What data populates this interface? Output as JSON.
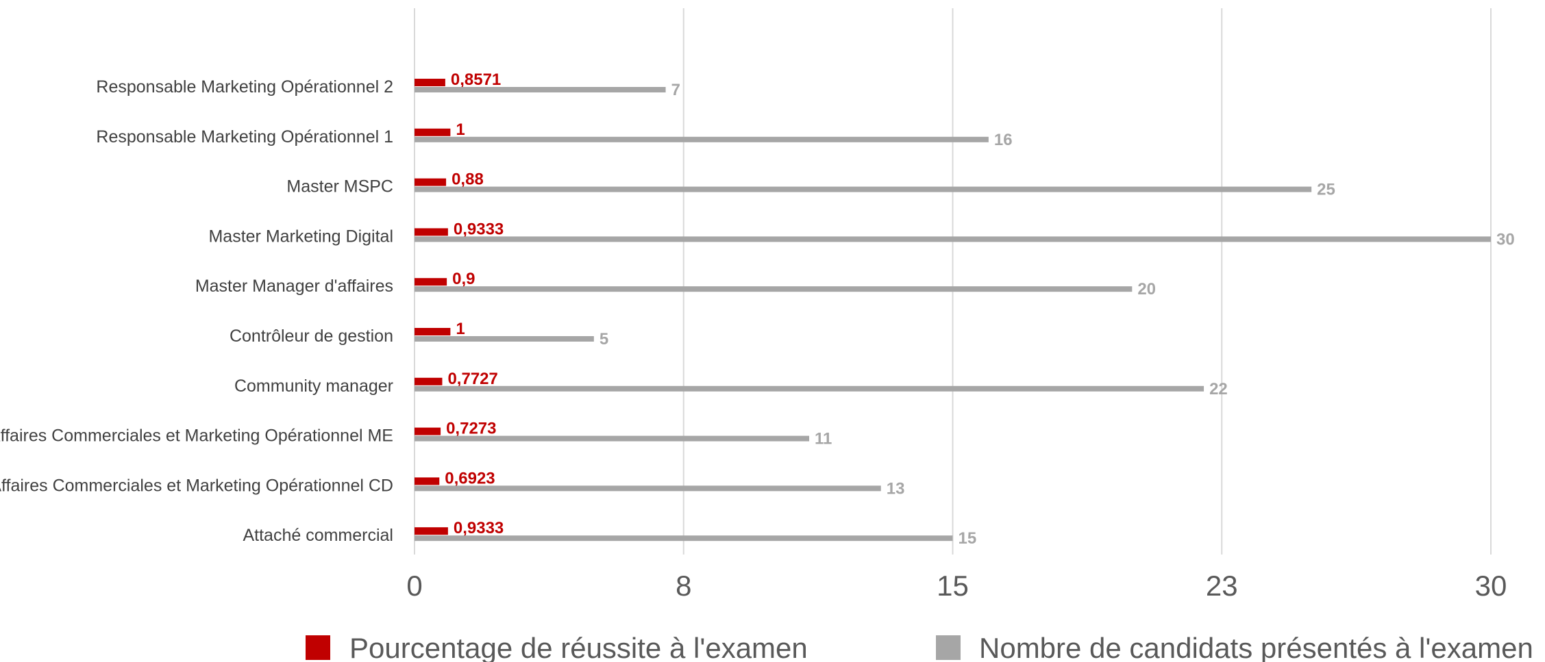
{
  "chart_data": {
    "type": "bar",
    "orientation": "horizontal",
    "categories": [
      "Responsable Marketing Opérationnel  2",
      "Responsable Marketing Opérationnel 1",
      "Master MSPC",
      "Master Marketing Digital",
      "Master Manager d'affaires",
      "Contrôleur de gestion",
      "Community manager",
      "Négociateur en Affaires Commerciales et Marketing Opérationnel ME",
      "Négociateur en Affaires Commerciales et Marketing Opérationnel CD",
      "Attaché commercial"
    ],
    "series": [
      {
        "name": "Pourcentage de réussite à l'examen",
        "color": "#C00000",
        "values": [
          0.8571,
          1,
          0.88,
          0.9333,
          0.9,
          1,
          0.7727,
          0.7273,
          0.6923,
          0.9333
        ],
        "labels": [
          "0,8571",
          "1",
          "0,88",
          "0,9333",
          "0,9",
          "1",
          "0,7727",
          "0,7273",
          "0,6923",
          "0,9333"
        ]
      },
      {
        "name": "Nombre de candidats présentés à l'examen",
        "color": "#A6A6A6",
        "values": [
          7,
          16,
          25,
          30,
          20,
          5,
          22,
          11,
          13,
          15
        ],
        "labels": [
          "7",
          "16",
          "25",
          "30",
          "20",
          "5",
          "22",
          "11",
          "13",
          "15"
        ]
      }
    ],
    "xlim": [
      0,
      30
    ],
    "xticks": [
      0,
      7.5,
      15,
      22.5,
      30
    ],
    "xtick_labels": [
      "0",
      "8",
      "15",
      "23",
      "30"
    ],
    "grid": true,
    "legend_position": "bottom",
    "title": "",
    "xlabel": "",
    "ylabel": ""
  }
}
